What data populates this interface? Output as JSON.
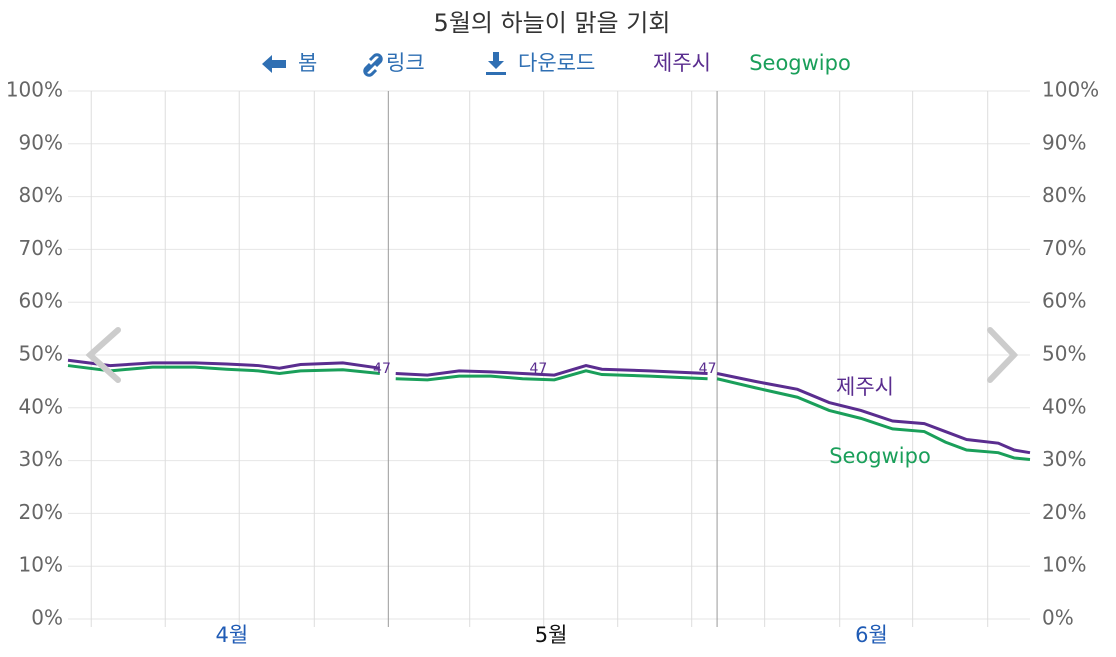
{
  "chart_data": {
    "type": "line",
    "title": "5월의 하늘이 맑을 기회",
    "toolbar": [
      "봄",
      "링크",
      "다운로드"
    ],
    "x": [
      0,
      4,
      8,
      12,
      15,
      18,
      20,
      22,
      26,
      29.5,
      30.2,
      31,
      34,
      37,
      40,
      43,
      46,
      49,
      50.5,
      55,
      60.5,
      60.9,
      61.4,
      65,
      69,
      72,
      75,
      78,
      81,
      83,
      85,
      88,
      89.5,
      91
    ],
    "xlim": [
      0,
      91
    ],
    "ylim": [
      0,
      100
    ],
    "yticks": [
      {
        "value": 0,
        "label": "0%"
      },
      {
        "value": 10,
        "label": "10%"
      },
      {
        "value": 20,
        "label": "20%"
      },
      {
        "value": 30,
        "label": "30%"
      },
      {
        "value": 40,
        "label": "40%"
      },
      {
        "value": 50,
        "label": "50%"
      },
      {
        "value": 60,
        "label": "60%"
      },
      {
        "value": 70,
        "label": "70%"
      },
      {
        "value": 80,
        "label": "80%"
      },
      {
        "value": 90,
        "label": "90%"
      },
      {
        "value": 100,
        "label": "100%"
      }
    ],
    "xticks": [
      {
        "value": 15.5,
        "label": "4월"
      },
      {
        "value": 45.7,
        "label": "5월"
      },
      {
        "value": 76,
        "label": "6월"
      }
    ],
    "xtick_colors": [
      "#1f5bb5",
      "#111111",
      "#1f5bb5"
    ],
    "month_boundaries": [
      30.3,
      61.4
    ],
    "xgrid": [
      2.2,
      9.2,
      16.2,
      23.3,
      38,
      45,
      52,
      59,
      65.9,
      73,
      79.9,
      87
    ],
    "grid": true,
    "series": [
      {
        "name": "제주시",
        "color": "#5a2d8f",
        "values": [
          49,
          48,
          48.5,
          48.5,
          48.3,
          48,
          47.5,
          48.2,
          48.5,
          47.5,
          null,
          46.5,
          46.2,
          47,
          46.8,
          46.5,
          46.2,
          48,
          47.3,
          47,
          46.5,
          null,
          46.5,
          45,
          43.5,
          41,
          39.5,
          37.5,
          37,
          35.5,
          34,
          33.3,
          32,
          31.5
        ]
      },
      {
        "name": "Seogwipo",
        "color": "#1a9f5a",
        "values": [
          48,
          47,
          47.7,
          47.7,
          47.3,
          47,
          46.5,
          47,
          47.2,
          46.5,
          null,
          45.5,
          45.3,
          46,
          46,
          45.5,
          45.3,
          47,
          46.3,
          46,
          45.5,
          null,
          45.5,
          43.8,
          42,
          39.5,
          38,
          36,
          35.5,
          33.5,
          32,
          31.5,
          30.5,
          30.2
        ]
      }
    ],
    "annotations": [
      {
        "label": "47",
        "x": 29.7,
        "y": 47
      },
      {
        "label": "47",
        "x": 44.5,
        "y": 47
      },
      {
        "label": "47",
        "x": 60.5,
        "y": 47
      }
    ]
  }
}
